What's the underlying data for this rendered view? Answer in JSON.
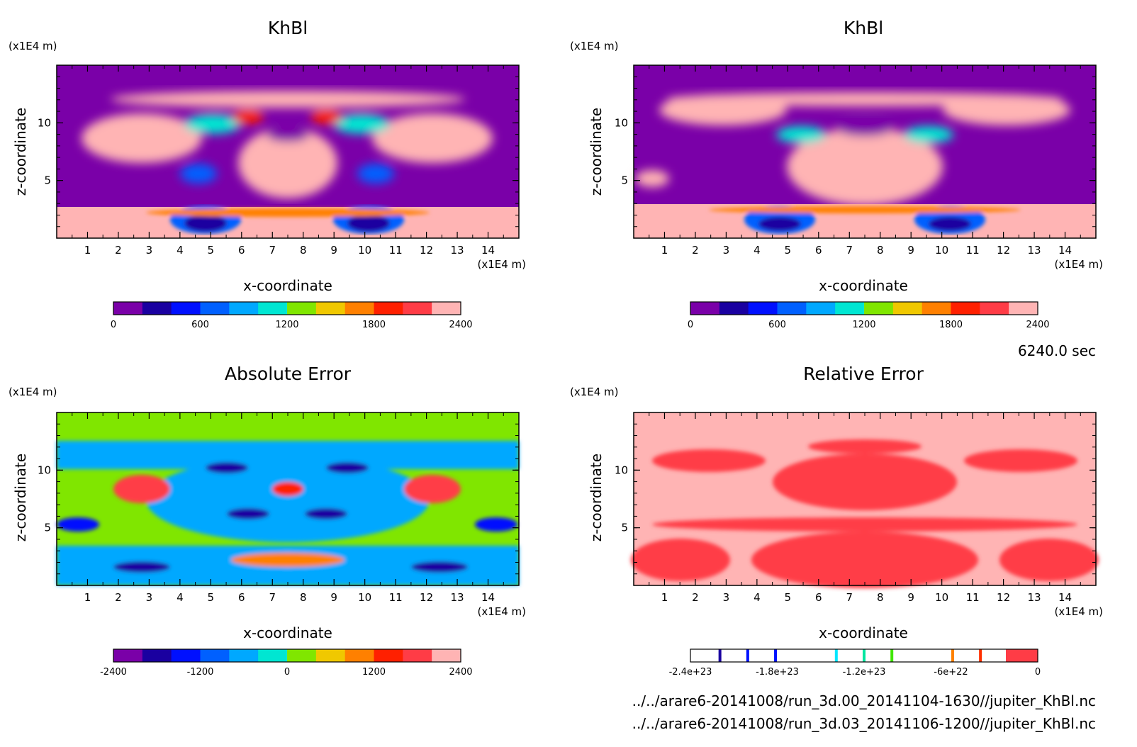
{
  "time_label": "6240.0 sec",
  "files": [
    "../../arare6-20141008/run_3d.00_20141104-1630//jupiter_KhBl.nc",
    "../../arare6-20141008/run_3d.03_20141106-1200//jupiter_KhBl.nc"
  ],
  "colors": {
    "khbl_palette": [
      "#7a00a8",
      "#1a00a0",
      "#0010ff",
      "#0060ff",
      "#00a8ff",
      "#00e6d2",
      "#80e600",
      "#f0c800",
      "#ff8000",
      "#ff2000",
      "#ff3c46",
      "#ffb4b4"
    ],
    "rel_marks": [
      "#1a00a0",
      "#0010ff",
      "#0010ff",
      "#00e6ff",
      "#00e6a0",
      "#40e600",
      "#ff8000",
      "#ff3000",
      "#ff3c46"
    ]
  },
  "chart_data": [
    {
      "type": "heatmap",
      "title": "KhBl",
      "xlabel": "x-coordinate",
      "ylabel": "z-coordinate",
      "x_unit": "(x1E4 m)",
      "y_unit": "(x1E4 m)",
      "xlim": [
        0,
        15
      ],
      "ylim": [
        0,
        15
      ],
      "x_ticks": [
        "1",
        "2",
        "3",
        "4",
        "5",
        "6",
        "7",
        "8",
        "9",
        "10",
        "11",
        "12",
        "13",
        "14"
      ],
      "y_ticks": [
        "5",
        "10"
      ],
      "colorbar_ticks": [
        "0",
        "600",
        "1200",
        "1800",
        "2400"
      ],
      "colorbar_range": [
        0,
        2400
      ]
    },
    {
      "type": "heatmap",
      "title": "KhBl",
      "xlabel": "x-coordinate",
      "ylabel": "z-coordinate",
      "x_unit": "(x1E4 m)",
      "y_unit": "(x1E4 m)",
      "xlim": [
        0,
        15
      ],
      "ylim": [
        0,
        15
      ],
      "x_ticks": [
        "1",
        "2",
        "3",
        "4",
        "5",
        "6",
        "7",
        "8",
        "9",
        "10",
        "11",
        "12",
        "13",
        "14"
      ],
      "y_ticks": [
        "5",
        "10"
      ],
      "colorbar_ticks": [
        "0",
        "600",
        "1200",
        "1800",
        "2400"
      ],
      "colorbar_range": [
        0,
        2400
      ]
    },
    {
      "type": "heatmap",
      "title": "Absolute Error",
      "xlabel": "x-coordinate",
      "ylabel": "z-coordinate",
      "x_unit": "(x1E4 m)",
      "y_unit": "(x1E4 m)",
      "xlim": [
        0,
        15
      ],
      "ylim": [
        0,
        15
      ],
      "x_ticks": [
        "1",
        "2",
        "3",
        "4",
        "5",
        "6",
        "7",
        "8",
        "9",
        "10",
        "11",
        "12",
        "13",
        "14"
      ],
      "y_ticks": [
        "5",
        "10"
      ],
      "colorbar_ticks": [
        "-2400",
        "-1200",
        "0",
        "1200",
        "2400"
      ],
      "colorbar_range": [
        -2400,
        2400
      ]
    },
    {
      "type": "heatmap",
      "title": "Relative Error",
      "xlabel": "x-coordinate",
      "ylabel": "z-coordinate",
      "x_unit": "(x1E4 m)",
      "y_unit": "(x1E4 m)",
      "xlim": [
        0,
        15
      ],
      "ylim": [
        0,
        15
      ],
      "x_ticks": [
        "1",
        "2",
        "3",
        "4",
        "5",
        "6",
        "7",
        "8",
        "9",
        "10",
        "11",
        "12",
        "13",
        "14"
      ],
      "y_ticks": [
        "5",
        "10"
      ],
      "colorbar_ticks": [
        "-2.4e+23",
        "-1.8e+23",
        "-1.2e+23",
        "-6e+22",
        "0"
      ],
      "colorbar_range": [
        -2.4e+23,
        0
      ]
    }
  ]
}
